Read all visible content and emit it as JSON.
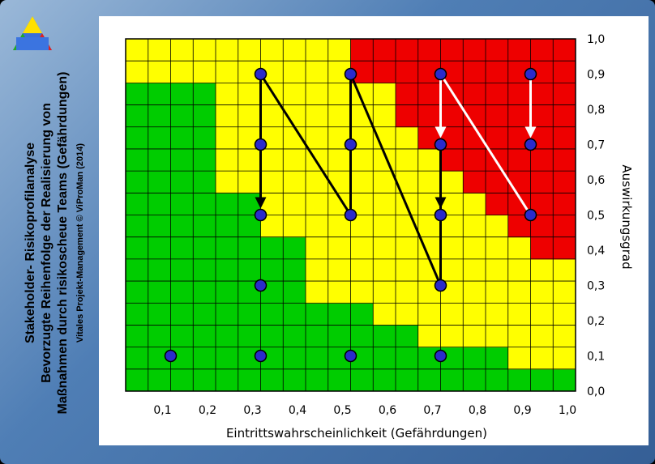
{
  "titles": {
    "line1": "Stakeholder- Risikoprofilanalyse",
    "line2": "Bevorzugte Reihenfolge der Realisierung von",
    "line3": "Maßnahmen durch risikoscheue Teams (Gefährdungen)",
    "line4": "Vitales Projekt-Management © ViProMan  (2014)"
  },
  "colors": {
    "green": "#00cc00",
    "yellow": "#ffff00",
    "red": "#ee0000",
    "point": "#2a2acc",
    "arrow_black": "#000000",
    "arrow_white": "#ffffff"
  },
  "chart_data": {
    "type": "scatter",
    "xlabel": "Eintrittswahrscheinlichkeit (Gefährdungen)",
    "ylabel": "Auswirkungsgrad",
    "xlim": [
      0,
      1.0
    ],
    "ylim": [
      0,
      1.0
    ],
    "x_ticks": [
      "0,1",
      "0,2",
      "0,3",
      "0,4",
      "0,5",
      "0,6",
      "0,7",
      "0,8",
      "0,9",
      "1,0"
    ],
    "y_ticks": [
      "0,0",
      "0,1",
      "0,2",
      "0,3",
      "0,4",
      "0,5",
      "0,6",
      "0,7",
      "0,8",
      "0,9",
      "1,0"
    ],
    "grid": true,
    "grid_cells": [
      20,
      16
    ],
    "zone_thresholds": {
      "green_max_y_by_col": [
        16,
        15,
        14,
        14,
        13,
        13,
        12,
        12,
        11,
        10,
        9,
        8,
        8,
        6,
        6,
        6,
        5,
        5,
        4,
        3,
        3,
        2,
        2,
        2,
        1,
        1,
        1,
        1,
        1,
        1,
        0,
        0,
        0,
        0,
        0,
        0,
        0,
        0,
        0,
        0
      ],
      "red_min_y_by_col": [
        17,
        17,
        17,
        17,
        17,
        17,
        17,
        17,
        17,
        17,
        17,
        17,
        17,
        17,
        17,
        17,
        17,
        17,
        17,
        17,
        17,
        17,
        17,
        17,
        17,
        17,
        17,
        17,
        17,
        17,
        17,
        17,
        17,
        17,
        17,
        17,
        17,
        17,
        17,
        17
      ]
    },
    "points": [
      {
        "x": 0.1,
        "y": 0.1
      },
      {
        "x": 0.3,
        "y": 0.1
      },
      {
        "x": 0.5,
        "y": 0.1
      },
      {
        "x": 0.7,
        "y": 0.1
      },
      {
        "x": 0.3,
        "y": 0.3
      },
      {
        "x": 0.7,
        "y": 0.3
      },
      {
        "x": 0.3,
        "y": 0.5
      },
      {
        "x": 0.5,
        "y": 0.5
      },
      {
        "x": 0.7,
        "y": 0.5
      },
      {
        "x": 0.9,
        "y": 0.5
      },
      {
        "x": 0.3,
        "y": 0.7
      },
      {
        "x": 0.5,
        "y": 0.7
      },
      {
        "x": 0.7,
        "y": 0.7
      },
      {
        "x": 0.9,
        "y": 0.7
      },
      {
        "x": 0.3,
        "y": 0.9
      },
      {
        "x": 0.5,
        "y": 0.9
      },
      {
        "x": 0.7,
        "y": 0.9
      },
      {
        "x": 0.9,
        "y": 0.9
      }
    ],
    "arrows": [
      {
        "from": [
          0.3,
          0.9
        ],
        "to": [
          0.3,
          0.7
        ],
        "color": "black",
        "head": false
      },
      {
        "from": [
          0.3,
          0.7
        ],
        "to": [
          0.3,
          0.5
        ],
        "color": "black",
        "head": true
      },
      {
        "from": [
          0.3,
          0.9
        ],
        "to": [
          0.5,
          0.5
        ],
        "color": "black",
        "head": false
      },
      {
        "from": [
          0.5,
          0.5
        ],
        "to": [
          0.5,
          0.9
        ],
        "color": "black",
        "head": false
      },
      {
        "from": [
          0.5,
          0.9
        ],
        "to": [
          0.7,
          0.3
        ],
        "color": "black",
        "head": false
      },
      {
        "from": [
          0.7,
          0.3
        ],
        "to": [
          0.7,
          0.7
        ],
        "color": "black",
        "head": false
      },
      {
        "from": [
          0.7,
          0.7
        ],
        "to": [
          0.7,
          0.5
        ],
        "color": "black",
        "head": true
      },
      {
        "from": [
          0.7,
          0.9
        ],
        "to": [
          0.7,
          0.7
        ],
        "color": "white",
        "head": true
      },
      {
        "from": [
          0.7,
          0.9
        ],
        "to": [
          0.9,
          0.5
        ],
        "color": "white",
        "head": false
      },
      {
        "from": [
          0.9,
          0.9
        ],
        "to": [
          0.9,
          0.7
        ],
        "color": "white",
        "head": true
      }
    ]
  }
}
